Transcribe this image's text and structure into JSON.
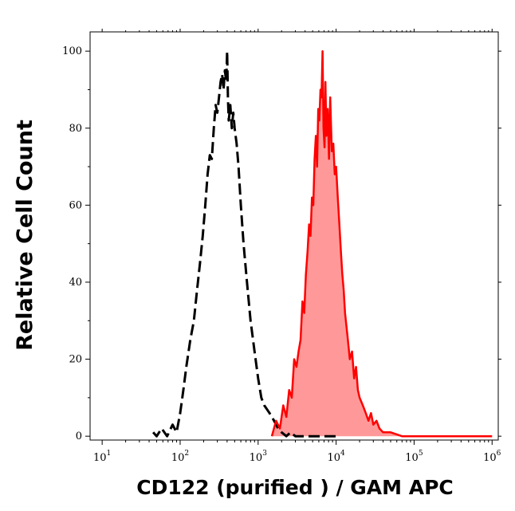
{
  "chart_data": {
    "type": "area",
    "xlabel": "CD122 (purified ) / GAM APC",
    "ylabel": "Relative Cell Count",
    "x_scale": "log",
    "xlim": [
      7,
      1200000
    ],
    "ylim": [
      -1,
      105
    ],
    "grid": false,
    "x_ticks": [
      {
        "base": "10",
        "exp": "1",
        "value": 10
      },
      {
        "base": "10",
        "exp": "2",
        "value": 100
      },
      {
        "base": "10",
        "exp": "3",
        "value": 1000
      },
      {
        "base": "10",
        "exp": "4",
        "value": 10000
      },
      {
        "base": "10",
        "exp": "5",
        "value": 100000
      },
      {
        "base": "10",
        "exp": "6",
        "value": 1000000
      }
    ],
    "y_ticks": [
      {
        "label": "0",
        "value": 0
      },
      {
        "label": "20",
        "value": 20
      },
      {
        "label": "40",
        "value": 40
      },
      {
        "label": "60",
        "value": 60
      },
      {
        "label": "80",
        "value": 80
      },
      {
        "label": "100",
        "value": 100
      }
    ],
    "series": [
      {
        "style": "dashed",
        "color": "#000000",
        "fill": "none",
        "x": [
          45,
          50,
          58,
          68,
          80,
          90,
          100,
          110,
          120,
          135,
          150,
          165,
          180,
          195,
          210,
          225,
          240,
          255,
          270,
          285,
          300,
          315,
          330,
          345,
          360,
          375,
          390,
          400,
          410,
          420,
          440,
          460,
          480,
          500,
          530,
          560,
          600,
          650,
          720,
          800,
          900,
          1000,
          1100,
          1200,
          1400,
          1600,
          1800,
          2000,
          2300,
          2600,
          3000,
          4000,
          6000,
          10000
        ],
        "y": [
          1,
          0,
          2,
          0,
          3,
          1,
          6,
          12,
          18,
          25,
          30,
          38,
          45,
          52,
          60,
          68,
          73,
          72,
          80,
          86,
          84,
          88,
          92,
          94,
          90,
          95,
          92,
          100,
          88,
          82,
          86,
          80,
          84,
          80,
          76,
          70,
          60,
          50,
          40,
          30,
          22,
          15,
          10,
          8,
          6,
          4,
          2,
          1,
          0,
          1,
          0,
          0,
          0,
          0
        ]
      },
      {
        "style": "solid",
        "color": "#ff0000",
        "fill": "#ff9999",
        "x": [
          1500,
          1700,
          1900,
          2100,
          2300,
          2500,
          2700,
          2900,
          3100,
          3300,
          3500,
          3700,
          3900,
          4100,
          4300,
          4500,
          4700,
          4900,
          5100,
          5300,
          5500,
          5700,
          5900,
          6100,
          6300,
          6500,
          6700,
          6900,
          7100,
          7300,
          7500,
          7800,
          8100,
          8400,
          8800,
          9200,
          9600,
          10000,
          10500,
          11000,
          11500,
          12000,
          12500,
          13000,
          14000,
          15000,
          16000,
          17000,
          18000,
          19000,
          20000,
          22000,
          24000,
          26000,
          28000,
          30000,
          33000,
          36000,
          40000,
          50000,
          70000,
          100000,
          300000,
          1000000
        ],
        "y": [
          0,
          4,
          2,
          8,
          5,
          12,
          10,
          20,
          18,
          22,
          25,
          35,
          32,
          42,
          48,
          55,
          52,
          62,
          60,
          72,
          78,
          70,
          85,
          82,
          90,
          88,
          100,
          80,
          75,
          92,
          78,
          85,
          72,
          88,
          74,
          76,
          68,
          70,
          62,
          55,
          48,
          42,
          38,
          32,
          26,
          20,
          22,
          15,
          18,
          12,
          10,
          8,
          6,
          4,
          6,
          3,
          4,
          2,
          1,
          1,
          0,
          0,
          0,
          0
        ]
      }
    ]
  }
}
